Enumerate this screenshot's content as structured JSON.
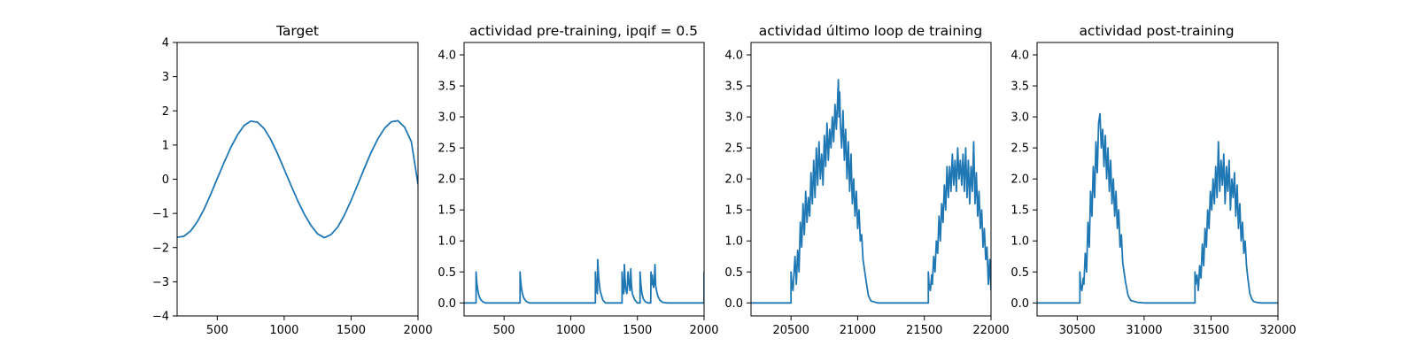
{
  "line_color": "#1f77b4",
  "chart_data": [
    {
      "type": "line",
      "title": "Target",
      "xlim": [
        200,
        2000
      ],
      "ylim": [
        -4,
        4
      ],
      "xticks": [
        500,
        1000,
        1500,
        2000
      ],
      "xtick_labels": [
        "500",
        "1000",
        "1500",
        "2000"
      ],
      "yticks": [
        -4,
        -3,
        -2,
        -1,
        0,
        1,
        2,
        3,
        4
      ],
      "ytick_labels": [
        "−4",
        "−3",
        "−2",
        "−1",
        "0",
        "1",
        "2",
        "3",
        "4"
      ],
      "series": [
        {
          "x": [
            200,
            250,
            300,
            350,
            400,
            450,
            500,
            550,
            600,
            650,
            700,
            750,
            800,
            850,
            900,
            950,
            1000,
            1050,
            1100,
            1150,
            1200,
            1250,
            1300,
            1350,
            1400,
            1450,
            1500,
            1550,
            1600,
            1650,
            1700,
            1750,
            1800,
            1850,
            1900,
            1950,
            2000
          ],
          "y": [
            -1.7,
            -1.67,
            -1.52,
            -1.25,
            -0.89,
            -0.45,
            0.02,
            0.48,
            0.92,
            1.29,
            1.57,
            1.7,
            1.67,
            1.48,
            1.16,
            0.75,
            0.29,
            -0.17,
            -0.62,
            -1.02,
            -1.35,
            -1.6,
            -1.71,
            -1.62,
            -1.4,
            -1.05,
            -0.62,
            -0.15,
            0.33,
            0.79,
            1.18,
            1.49,
            1.68,
            1.71,
            1.52,
            1.1,
            -0.15
          ]
        }
      ]
    },
    {
      "type": "line",
      "title": "actividad pre-training, ipqif = 0.5",
      "xlim": [
        200,
        2000
      ],
      "ylim": [
        -0.21,
        4.2
      ],
      "xticks": [
        500,
        1000,
        1500,
        2000
      ],
      "xtick_labels": [
        "500",
        "1000",
        "1500",
        "2000"
      ],
      "yticks": [
        0,
        0.5,
        1,
        1.5,
        2,
        2.5,
        3,
        3.5,
        4
      ],
      "ytick_labels": [
        "0.0",
        "0.5",
        "1.0",
        "1.5",
        "2.0",
        "2.5",
        "3.0",
        "3.5",
        "4.0"
      ],
      "series": [
        {
          "x": [
            200,
            290,
            290,
            293,
            297,
            302,
            308,
            316,
            326,
            340,
            360,
            620,
            620,
            623,
            627,
            632,
            638,
            646,
            656,
            670,
            690,
            1185,
            1185,
            1190,
            1195,
            1200,
            1202,
            1210,
            1220,
            1240,
            1260,
            1385,
            1385,
            1390,
            1397,
            1400,
            1402,
            1407,
            1412,
            1420,
            1424,
            1428,
            1430,
            1438,
            1445,
            1450,
            1455,
            1462,
            1480,
            1500,
            1520,
            1520,
            1526,
            1534,
            1545,
            1560,
            1580,
            1600,
            1602,
            1606,
            1610,
            1612,
            1617,
            1622,
            1627,
            1632,
            1635,
            1637,
            1645,
            1655,
            1670,
            1690,
            1720,
            1750,
            2000,
            2000
          ],
          "y": [
            0,
            0,
            0.5,
            0.4,
            0.3,
            0.22,
            0.15,
            0.09,
            0.05,
            0.02,
            0,
            0,
            0.5,
            0.4,
            0.3,
            0.22,
            0.15,
            0.09,
            0.05,
            0.02,
            0,
            0,
            0.5,
            0.3,
            0.2,
            0.15,
            0.7,
            0.4,
            0.2,
            0.05,
            0,
            0,
            0.5,
            0.3,
            0.15,
            0.2,
            0.62,
            0.4,
            0.25,
            0.15,
            0.2,
            0.45,
            0.5,
            0.3,
            0.2,
            0.55,
            0.3,
            0.15,
            0.05,
            0,
            0,
            0.5,
            0.3,
            0.15,
            0.06,
            0.02,
            0,
            0,
            0.5,
            0.35,
            0.3,
            0.45,
            0.3,
            0.25,
            0.35,
            0.62,
            0.4,
            0.28,
            0.18,
            0.1,
            0.04,
            0.01,
            0,
            0,
            0,
            0.5
          ]
        }
      ]
    },
    {
      "type": "line",
      "title": "actividad último loop de training",
      "xlim": [
        20200,
        22000
      ],
      "ylim": [
        -0.21,
        4.2
      ],
      "xticks": [
        20500,
        21000,
        21500,
        22000
      ],
      "xtick_labels": [
        "20500",
        "21000",
        "21500",
        "22000"
      ],
      "yticks": [
        0,
        0.5,
        1,
        1.5,
        2,
        2.5,
        3,
        3.5,
        4
      ],
      "ytick_labels": [
        "0.0",
        "0.5",
        "1.0",
        "1.5",
        "2.0",
        "2.5",
        "3.0",
        "3.5",
        "4.0"
      ],
      "series": [
        {
          "x": [
            20200,
            20500,
            20500,
            20505,
            20515,
            20520,
            20530,
            20540,
            20550,
            20560,
            20570,
            20580,
            20590,
            20600,
            20610,
            20620,
            20630,
            20640,
            20650,
            20660,
            20670,
            20680,
            20690,
            20700,
            20710,
            20720,
            20730,
            20740,
            20750,
            20760,
            20770,
            20780,
            20790,
            20800,
            20810,
            20820,
            20830,
            20840,
            20850,
            20855,
            20860,
            20865,
            20870,
            20880,
            20890,
            20900,
            20910,
            20920,
            20930,
            20940,
            20950,
            20960,
            20970,
            20980,
            20990,
            21000,
            21010,
            21020,
            21030,
            21040,
            21060,
            21080,
            21100,
            21150,
            21200,
            21530,
            21530,
            21535,
            21545,
            21555,
            21560,
            21570,
            21580,
            21590,
            21600,
            21610,
            21620,
            21630,
            21640,
            21650,
            21660,
            21670,
            21680,
            21690,
            21700,
            21710,
            21720,
            21730,
            21740,
            21750,
            21760,
            21770,
            21780,
            21790,
            21800,
            21810,
            21820,
            21830,
            21840,
            21850,
            21860,
            21870,
            21880,
            21890,
            21900,
            21910,
            21920,
            21930,
            21940,
            21950,
            21960,
            21970,
            21980,
            21990,
            22000
          ],
          "y": [
            0,
            0,
            0.5,
            0.35,
            0.2,
            0.4,
            0.75,
            0.3,
            0.85,
            0.5,
            1.3,
            0.9,
            1.6,
            1.1,
            1.8,
            1.3,
            1.7,
            1.4,
            2.1,
            1.6,
            2.3,
            1.7,
            2.5,
            1.9,
            2.6,
            2.0,
            2.4,
            1.9,
            2.7,
            2.2,
            2.9,
            2.3,
            2.8,
            2.5,
            3.0,
            2.6,
            3.2,
            2.8,
            3.3,
            3.6,
            3.0,
            3.4,
            2.9,
            2.5,
            3.1,
            2.3,
            2.8,
            2.0,
            2.6,
            1.8,
            2.4,
            1.6,
            2.0,
            1.4,
            1.8,
            1.2,
            1.5,
            1.0,
            1.1,
            0.7,
            0.4,
            0.12,
            0.03,
            0,
            0,
            0,
            0.5,
            0.3,
            0.2,
            0.45,
            0.3,
            0.75,
            0.5,
            1.0,
            0.8,
            1.4,
            1.0,
            1.6,
            1.3,
            1.9,
            1.5,
            2.2,
            1.7,
            2.2,
            1.8,
            2.4,
            1.9,
            2.3,
            1.8,
            2.5,
            2.0,
            2.3,
            1.9,
            2.4,
            1.8,
            2.5,
            1.7,
            2.3,
            1.6,
            2.2,
            1.8,
            2.6,
            1.6,
            2.1,
            1.4,
            1.8,
            1.2,
            1.5,
            0.9,
            1.2,
            0.7,
            0.9,
            0.3,
            0.7,
            0.2
          ]
        }
      ]
    },
    {
      "type": "line",
      "title": "actividad post-training",
      "xlim": [
        30200,
        32000
      ],
      "ylim": [
        -0.21,
        4.2
      ],
      "xticks": [
        30500,
        31000,
        31500,
        32000
      ],
      "xtick_labels": [
        "30500",
        "31000",
        "31500",
        "32000"
      ],
      "yticks": [
        0,
        0.5,
        1,
        1.5,
        2,
        2.5,
        3,
        3.5,
        4
      ],
      "ytick_labels": [
        "0.0",
        "0.5",
        "1.0",
        "1.5",
        "2.0",
        "2.5",
        "3.0",
        "3.5",
        "4.0"
      ],
      "series": [
        {
          "x": [
            30200,
            30520,
            30520,
            30525,
            30535,
            30545,
            30550,
            30560,
            30570,
            30580,
            30590,
            30600,
            30610,
            30620,
            30630,
            30640,
            30650,
            30660,
            30670,
            30680,
            30690,
            30700,
            30710,
            30720,
            30730,
            30740,
            30750,
            30760,
            30770,
            30780,
            30790,
            30800,
            30810,
            30820,
            30830,
            30840,
            30860,
            30880,
            30900,
            30950,
            31000,
            31380,
            31380,
            31385,
            31395,
            31405,
            31415,
            31425,
            31435,
            31445,
            31455,
            31465,
            31475,
            31485,
            31495,
            31505,
            31515,
            31525,
            31535,
            31545,
            31555,
            31565,
            31575,
            31585,
            31595,
            31605,
            31615,
            31625,
            31635,
            31645,
            31655,
            31665,
            31675,
            31685,
            31695,
            31705,
            31715,
            31725,
            31735,
            31745,
            31755,
            31765,
            31775,
            31790,
            31805,
            31820,
            31840,
            31870,
            31900,
            31950,
            32000
          ],
          "y": [
            0,
            0,
            0.5,
            0.3,
            0.2,
            0.4,
            0.3,
            0.8,
            0.5,
            1.3,
            0.9,
            1.8,
            1.4,
            2.2,
            1.7,
            2.6,
            2.1,
            2.9,
            3.05,
            2.5,
            2.8,
            2.2,
            2.7,
            2.0,
            2.5,
            1.8,
            2.3,
            1.6,
            2.0,
            1.4,
            1.8,
            1.2,
            1.5,
            0.9,
            1.1,
            0.65,
            0.35,
            0.12,
            0.04,
            0.01,
            0,
            0,
            0.5,
            0.3,
            0.45,
            0.2,
            0.6,
            0.4,
            0.95,
            0.6,
            1.2,
            0.9,
            1.5,
            1.2,
            1.8,
            1.5,
            2.0,
            1.6,
            2.2,
            1.7,
            2.6,
            1.8,
            2.3,
            1.9,
            2.4,
            1.6,
            2.2,
            1.8,
            2.3,
            1.5,
            2.0,
            1.7,
            2.1,
            1.4,
            1.9,
            1.2,
            1.6,
            1.0,
            1.3,
            0.8,
            1.0,
            0.6,
            0.4,
            0.15,
            0.06,
            0.02,
            0.01,
            0,
            0,
            0,
            0
          ]
        }
      ]
    }
  ]
}
